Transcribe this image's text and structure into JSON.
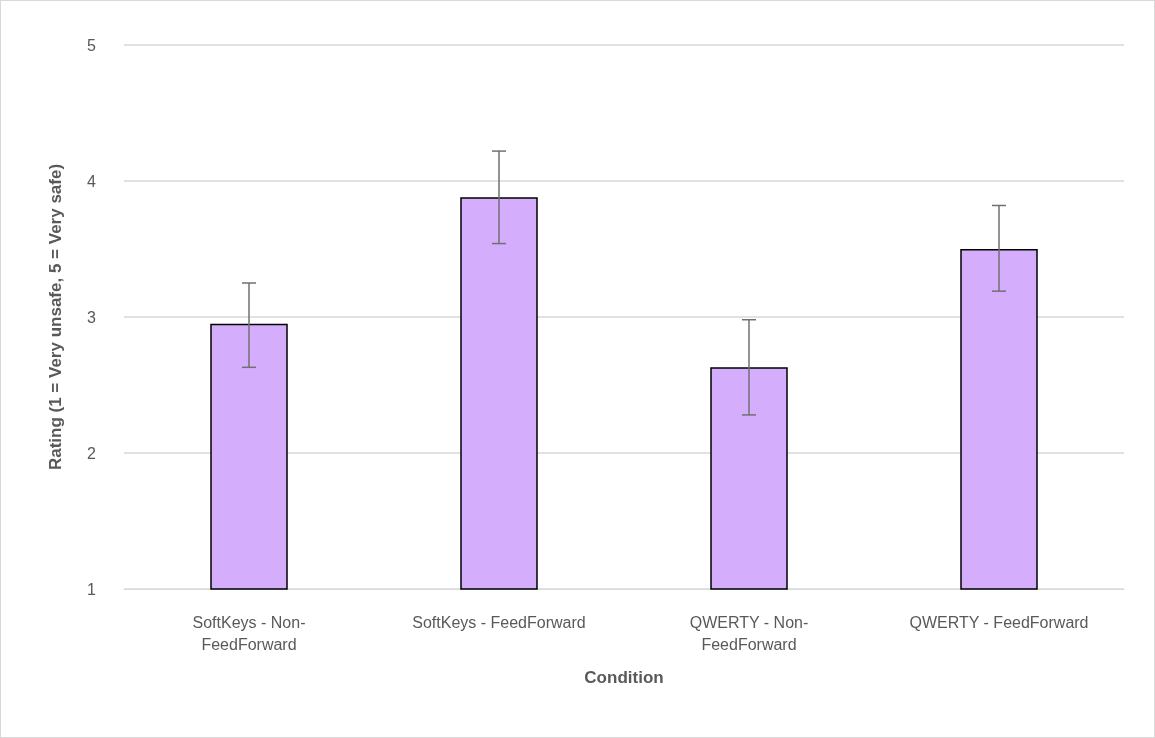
{
  "chart_data": {
    "type": "bar",
    "xlabel": "Condition",
    "ylabel": "Rating (1 = Very unsafe, 5 = Very safe)",
    "categories": [
      "SoftKeys - Non-\nFeedForward",
      "SoftKeys - FeedForward",
      "QWERTY - Non-\nFeedForward",
      "QWERTY - FeedForward"
    ],
    "values": [
      2.95,
      3.88,
      2.63,
      3.5
    ],
    "errors": [
      [
        2.63,
        3.25
      ],
      [
        3.54,
        4.22
      ],
      [
        2.28,
        2.98
      ],
      [
        3.19,
        3.82
      ]
    ],
    "color": "#d5adfd",
    "ylim": [
      1,
      5
    ],
    "yticks": [
      1,
      2,
      3,
      4,
      5
    ],
    "grid": "y"
  }
}
